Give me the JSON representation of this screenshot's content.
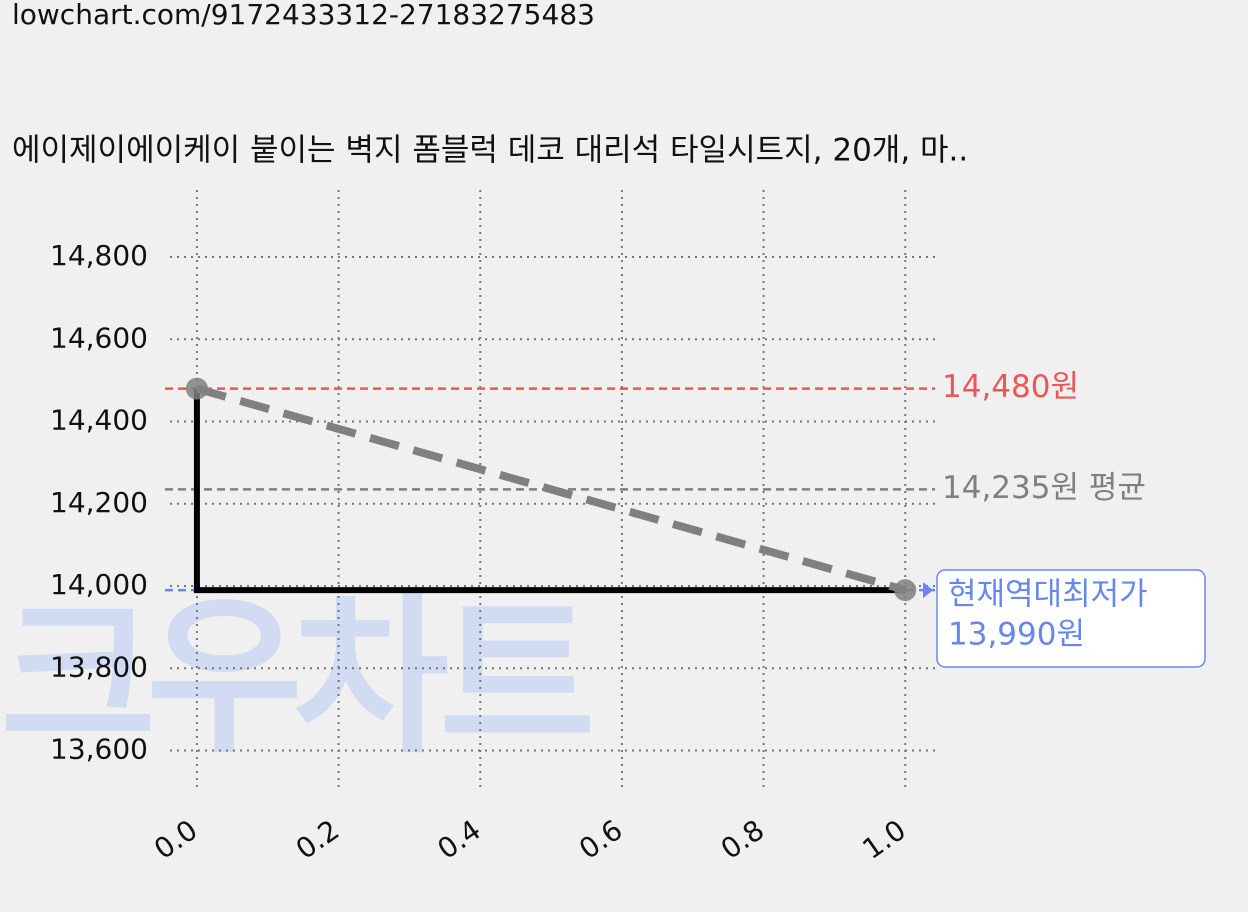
{
  "url": "lowchart.com/9172433312-27183275483",
  "chart_data": {
    "type": "line",
    "title": "에이제이에이케이 붙이는 벽지 폼블럭 데코 대리석 타일시트지, 20개, 마..",
    "watermark": "크우차트",
    "x": [
      0,
      1
    ],
    "series": [
      {
        "style": "step",
        "color": "#000000",
        "values": [
          14480,
          13990
        ]
      },
      {
        "style": "dashed",
        "color": "#808080",
        "values": [
          14480,
          13990
        ]
      }
    ],
    "hlines": [
      {
        "value": 14480,
        "color": "#ee5555",
        "label": "14,480원"
      },
      {
        "value": 14235,
        "color": "#808080",
        "label": "14,235원 평균"
      },
      {
        "value": 13990,
        "color": "#6688ee",
        "title": "현재역대최저가",
        "label": "13,990원"
      }
    ],
    "xlim": [
      -0.038,
      1.042
    ],
    "ylim": [
      13504,
      14963
    ],
    "xticks": [
      {
        "value": 0,
        "label": "0.0"
      },
      0.2,
      0.4,
      0.6,
      0.8,
      {
        "value": 1,
        "label": "1.0"
      }
    ],
    "yticks": [
      {
        "value": 13600,
        "label": "13,600"
      },
      {
        "value": 13800,
        "label": "13,800"
      },
      {
        "value": 14000,
        "label": "14,000"
      },
      {
        "value": 14200,
        "label": "14,200"
      },
      {
        "value": 14400,
        "label": "14,400"
      },
      {
        "value": 14600,
        "label": "14,600"
      },
      {
        "value": 14800,
        "label": "14,800"
      }
    ],
    "grid": true
  }
}
